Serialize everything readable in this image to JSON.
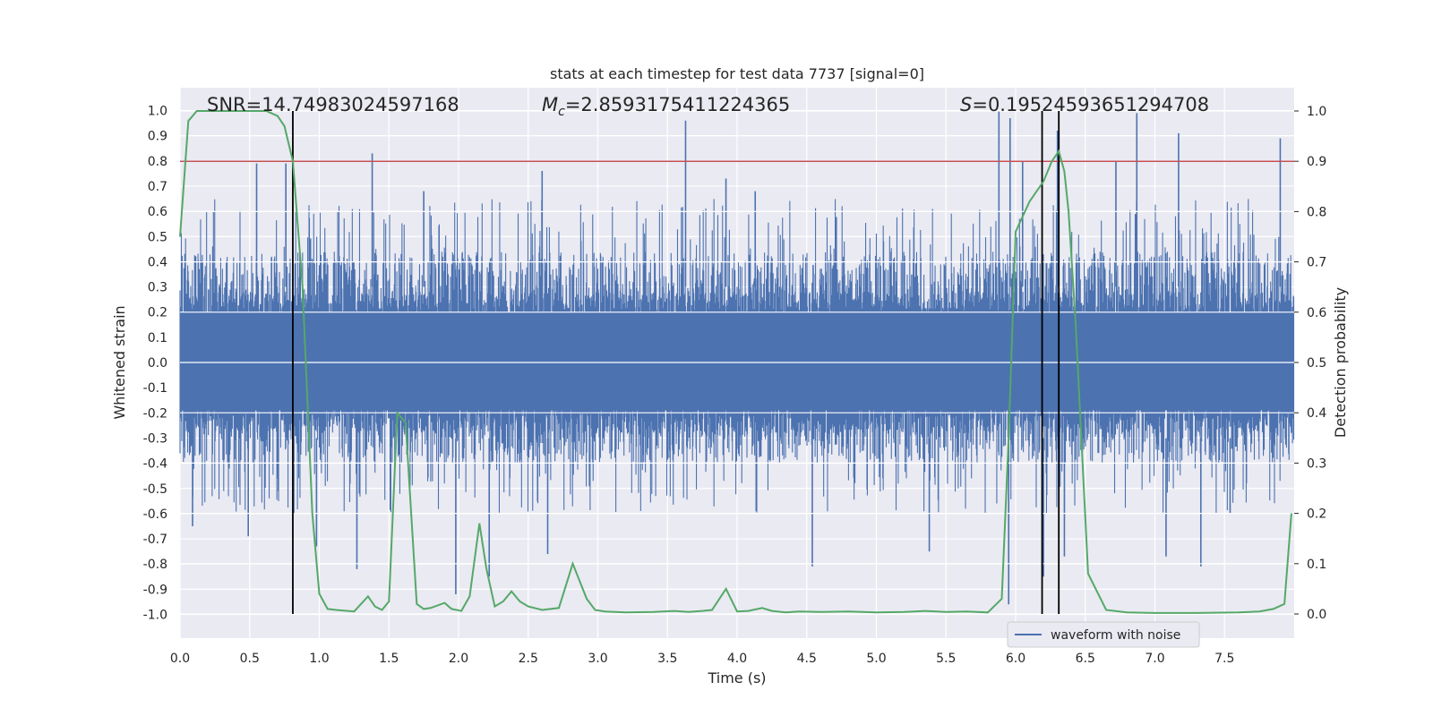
{
  "chart_data": {
    "type": "line",
    "title": "stats at each timestep for test data 7737 [signal=0]",
    "xlabel": "Time (s)",
    "ylabel": "Whitened strain",
    "ylabel_right": "Detection probability",
    "xlim": [
      0.0,
      8.0
    ],
    "ylim": [
      -1.05,
      1.05
    ],
    "ylim_right": [
      -0.05,
      1.03
    ],
    "x_ticks": [
      "0.0",
      "0.5",
      "1.0",
      "1.5",
      "2.0",
      "2.5",
      "3.0",
      "3.5",
      "4.0",
      "4.5",
      "5.0",
      "5.5",
      "6.0",
      "6.5",
      "7.0",
      "7.5"
    ],
    "y_ticks": [
      "-1.0",
      "-0.9",
      "-0.8",
      "-0.7",
      "-0.6",
      "-0.5",
      "-0.4",
      "-0.3",
      "-0.2",
      "-0.1",
      "0.0",
      "0.1",
      "0.2",
      "0.3",
      "0.4",
      "0.5",
      "0.6",
      "0.7",
      "0.8",
      "0.9",
      "1.0"
    ],
    "y_ticks_right": [
      "0.0",
      "0.1",
      "0.2",
      "0.3",
      "0.4",
      "0.5",
      "0.6",
      "0.7",
      "0.8",
      "0.9",
      "1.0"
    ],
    "grid": true,
    "legend_position": "lower-right",
    "annotations": {
      "snr": "SNR=14.74983024597168",
      "mc_symbol": "M",
      "mc_sub": "c",
      "mc_value": "=2.8593175411224365",
      "s_symbol": "S",
      "s_value": "=0.19524593651294708"
    },
    "threshold": {
      "value": 0.9,
      "axis": "right",
      "color": "#c44e52"
    },
    "vertical_lines": [
      0.81,
      6.19,
      6.31
    ],
    "series": [
      {
        "name": "waveform with noise",
        "axis": "left",
        "color": "#4c72b0",
        "envelope": {
          "upper_typical": 0.44,
          "lower_typical": -0.4,
          "peaks": [
            [
              0.55,
              0.79
            ],
            [
              0.76,
              0.79
            ],
            [
              1.38,
              0.83
            ],
            [
              1.75,
              0.68
            ],
            [
              2.6,
              0.76
            ],
            [
              3.63,
              0.96
            ],
            [
              3.92,
              0.73
            ],
            [
              4.13,
              0.68
            ],
            [
              5.88,
              1.0
            ],
            [
              5.96,
              0.97
            ],
            [
              6.05,
              0.8
            ],
            [
              6.3,
              0.92
            ],
            [
              6.72,
              0.8
            ],
            [
              6.87,
              0.99
            ],
            [
              7.17,
              0.91
            ],
            [
              7.9,
              0.89
            ]
          ],
          "troughs": [
            [
              0.09,
              -0.65
            ],
            [
              0.49,
              -0.69
            ],
            [
              0.98,
              -0.73
            ],
            [
              1.27,
              -0.82
            ],
            [
              1.98,
              -0.92
            ],
            [
              2.22,
              -0.85
            ],
            [
              2.64,
              -0.76
            ],
            [
              4.54,
              -0.81
            ],
            [
              5.38,
              -0.75
            ],
            [
              5.95,
              -0.96
            ],
            [
              6.2,
              -0.85
            ],
            [
              6.35,
              -0.77
            ],
            [
              7.08,
              -0.77
            ],
            [
              7.33,
              -0.81
            ],
            [
              7.54,
              -0.6
            ]
          ]
        }
      },
      {
        "name": "",
        "axis": "right",
        "color": "#55a868",
        "x": [
          0.0,
          0.06,
          0.12,
          0.2,
          0.3,
          0.5,
          0.62,
          0.7,
          0.75,
          0.81,
          0.88,
          0.95,
          1.0,
          1.06,
          1.12,
          1.25,
          1.35,
          1.4,
          1.45,
          1.5,
          1.56,
          1.62,
          1.7,
          1.75,
          1.8,
          1.9,
          1.95,
          2.02,
          2.08,
          2.15,
          2.2,
          2.26,
          2.32,
          2.38,
          2.44,
          2.5,
          2.6,
          2.72,
          2.82,
          2.92,
          2.98,
          3.05,
          3.2,
          3.4,
          3.55,
          3.65,
          3.75,
          3.82,
          3.92,
          4.0,
          4.08,
          4.18,
          4.25,
          4.35,
          4.45,
          4.6,
          4.8,
          5.0,
          5.2,
          5.35,
          5.5,
          5.65,
          5.8,
          5.9,
          5.95,
          6.0,
          6.1,
          6.2,
          6.26,
          6.31,
          6.35,
          6.38,
          6.43,
          6.52,
          6.65,
          6.8,
          7.0,
          7.3,
          7.6,
          7.75,
          7.85,
          7.93,
          7.98
        ],
        "y": [
          0.75,
          0.98,
          1.0,
          1.0,
          1.0,
          1.0,
          1.0,
          0.99,
          0.97,
          0.9,
          0.65,
          0.2,
          0.04,
          0.01,
          0.008,
          0.005,
          0.035,
          0.015,
          0.008,
          0.025,
          0.4,
          0.38,
          0.02,
          0.01,
          0.012,
          0.022,
          0.01,
          0.006,
          0.035,
          0.18,
          0.09,
          0.015,
          0.025,
          0.045,
          0.025,
          0.015,
          0.008,
          0.012,
          0.1,
          0.03,
          0.008,
          0.005,
          0.003,
          0.004,
          0.006,
          0.004,
          0.006,
          0.008,
          0.05,
          0.005,
          0.006,
          0.012,
          0.006,
          0.003,
          0.005,
          0.004,
          0.005,
          0.003,
          0.004,
          0.006,
          0.004,
          0.005,
          0.003,
          0.03,
          0.35,
          0.76,
          0.82,
          0.86,
          0.9,
          0.92,
          0.88,
          0.8,
          0.58,
          0.08,
          0.008,
          0.003,
          0.002,
          0.002,
          0.003,
          0.005,
          0.01,
          0.02,
          0.2
        ]
      }
    ]
  }
}
